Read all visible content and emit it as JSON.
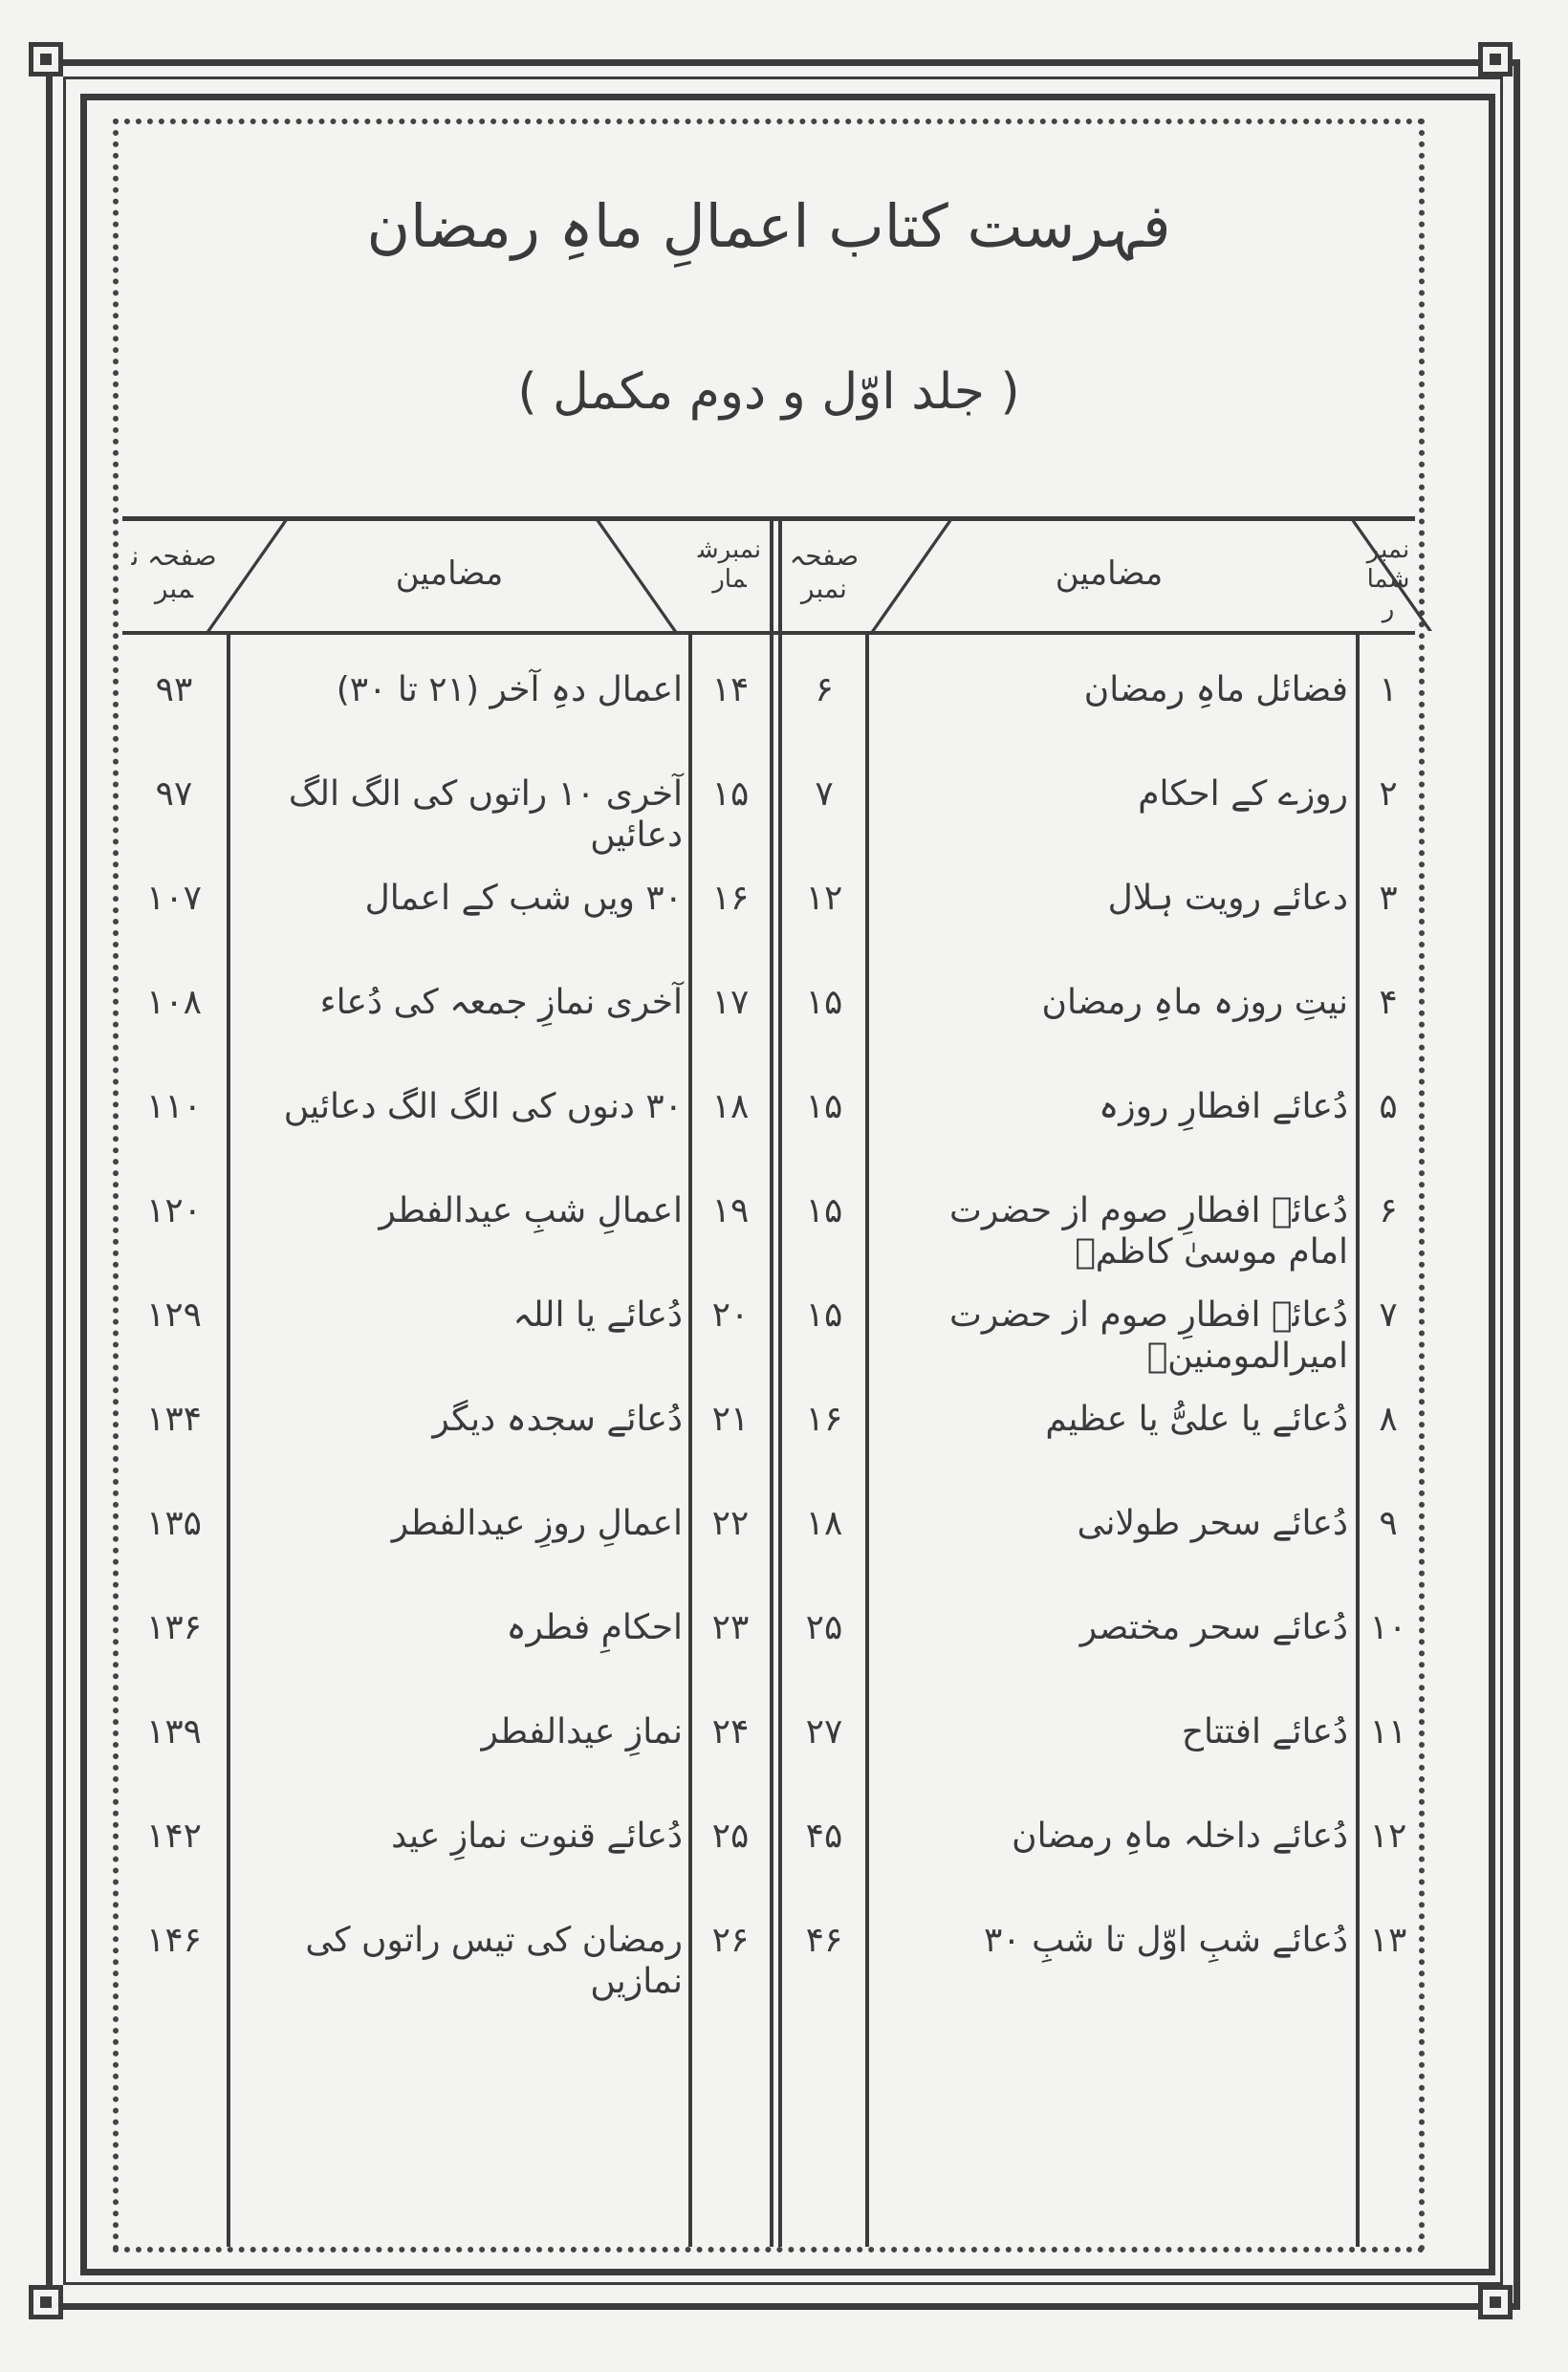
{
  "document": {
    "title": "فہرست کتاب اعمالِ ماہِ رمضان",
    "subtitle": "( جلد اوّل و دوم مکمل )",
    "columns": {
      "number": "نمبرشمار",
      "subject": "مضامین",
      "page": "صفحہ نمبر"
    },
    "right_table": [
      {
        "number": "۱",
        "subject": "فضائل ماہِ رمضان",
        "page": "۶"
      },
      {
        "number": "۲",
        "subject": "روزے کے احکام",
        "page": "۷"
      },
      {
        "number": "۳",
        "subject": "دعائے رویت ہلال",
        "page": "۱۲"
      },
      {
        "number": "۴",
        "subject": "نیتِ روزہ ماہِ رمضان",
        "page": "۱۵"
      },
      {
        "number": "۵",
        "subject": "دُعائے افطارِ روزہ",
        "page": "۱۵"
      },
      {
        "number": "۶",
        "subject": "دُعائے افطارِ صوم از حضرت امام موسیٰ کاظمؑ",
        "page": "۱۵"
      },
      {
        "number": "۷",
        "subject": "دُعائے افطارِ صوم از حضرت امیرالمومنینؑ",
        "page": "۱۵"
      },
      {
        "number": "۸",
        "subject": "دُعائے یا علیُّ یا عظیم",
        "page": "۱۶"
      },
      {
        "number": "۹",
        "subject": "دُعائے سحر طولانی",
        "page": "۱۸"
      },
      {
        "number": "۱۰",
        "subject": "دُعائے سحر مختصر",
        "page": "۲۵"
      },
      {
        "number": "۱۱",
        "subject": "دُعائے افتتاح",
        "page": "۲۷"
      },
      {
        "number": "۱۲",
        "subject": "دُعائے داخلہ ماہِ رمضان",
        "page": "۴۵"
      },
      {
        "number": "۱۳",
        "subject": "دُعائے شبِ اوّل تا شبِ ۳۰",
        "page": "۴۶"
      }
    ],
    "left_table": [
      {
        "number": "۱۴",
        "subject": "اعمال دہِ آخر (۲۱ تا ۳۰)",
        "page": "۹۳"
      },
      {
        "number": "۱۵",
        "subject": "آخری ۱۰ راتوں کی الگ الگ دعائیں",
        "page": "۹۷"
      },
      {
        "number": "۱۶",
        "subject": "۳۰ ویں شب کے اعمال",
        "page": "۱۰۷"
      },
      {
        "number": "۱۷",
        "subject": "آخری نمازِ جمعہ کی دُعاء",
        "page": "۱۰۸"
      },
      {
        "number": "۱۸",
        "subject": "۳۰ دنوں کی الگ الگ دعائیں",
        "page": "۱۱۰"
      },
      {
        "number": "۱۹",
        "subject": "اعمالِ شبِ عیدالفطر",
        "page": "۱۲۰"
      },
      {
        "number": "۲۰",
        "subject": "دُعائے یا اللہ",
        "page": "۱۲۹"
      },
      {
        "number": "۲۱",
        "subject": "دُعائے سجدہ دیگر",
        "page": "۱۳۴"
      },
      {
        "number": "۲۲",
        "subject": "اعمالِ روزِ عیدالفطر",
        "page": "۱۳۵"
      },
      {
        "number": "۲۳",
        "subject": "احکامِ فطرہ",
        "page": "۱۳۶"
      },
      {
        "number": "۲۴",
        "subject": "نمازِ عیدالفطر",
        "page": "۱۳۹"
      },
      {
        "number": "۲۵",
        "subject": "دُعائے قنوت نمازِ عید",
        "page": "۱۴۲"
      },
      {
        "number": "۲۶",
        "subject": "رمضان کی تیس راتوں کی نمازیں",
        "page": "۱۴۶"
      }
    ]
  }
}
